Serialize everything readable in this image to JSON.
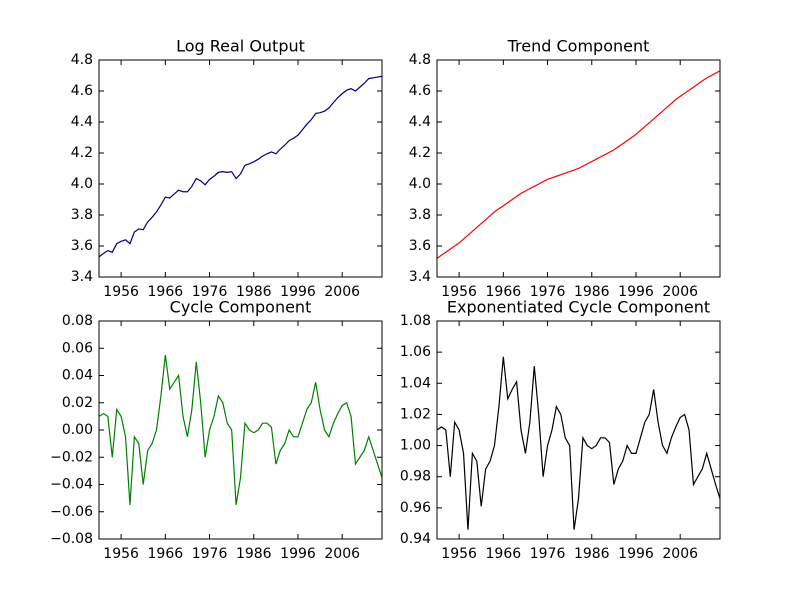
{
  "chart_data": [
    {
      "type": "line",
      "title": "Log Real Output",
      "color": "#000080",
      "x": [
        1951,
        1952,
        1953,
        1954,
        1955,
        1956,
        1957,
        1958,
        1959,
        1960,
        1961,
        1962,
        1963,
        1964,
        1965,
        1966,
        1967,
        1968,
        1969,
        1970,
        1971,
        1972,
        1973,
        1974,
        1975,
        1976,
        1977,
        1978,
        1979,
        1980,
        1981,
        1982,
        1983,
        1984,
        1985,
        1986,
        1987,
        1988,
        1989,
        1990,
        1991,
        1992,
        1993,
        1994,
        1995,
        1996,
        1997,
        1998,
        1999,
        2000,
        2001,
        2002,
        2003,
        2004,
        2005,
        2006,
        2007,
        2008,
        2009,
        2010,
        2011,
        2012,
        2013,
        2014,
        2015
      ],
      "values": [
        3.53,
        3.552,
        3.57,
        3.56,
        3.615,
        3.63,
        3.64,
        3.615,
        3.69,
        3.71,
        3.705,
        3.755,
        3.785,
        3.82,
        3.865,
        3.915,
        3.91,
        3.935,
        3.96,
        3.95,
        3.95,
        3.985,
        4.035,
        4.02,
        3.995,
        4.03,
        4.05,
        4.075,
        4.08,
        4.075,
        4.08,
        4.035,
        4.065,
        4.12,
        4.13,
        4.143,
        4.16,
        4.18,
        4.195,
        4.207,
        4.195,
        4.225,
        4.25,
        4.28,
        4.295,
        4.315,
        4.35,
        4.385,
        4.415,
        4.455,
        4.46,
        4.47,
        4.49,
        4.525,
        4.557,
        4.583,
        4.605,
        4.615,
        4.6,
        4.625,
        4.65,
        4.68,
        4.685,
        4.69,
        4.695
      ],
      "xlim": [
        1951,
        2015
      ],
      "xticks": [
        1956,
        1966,
        1976,
        1986,
        1996,
        2006
      ],
      "ylim": [
        3.4,
        4.8
      ],
      "yticks": [
        {
          "value": 3.4,
          "label": "3.4"
        },
        {
          "value": 3.6,
          "label": "3.6"
        },
        {
          "value": 3.8,
          "label": "3.8"
        },
        {
          "value": 4.0,
          "label": "4.0"
        },
        {
          "value": 4.2,
          "label": "4.2"
        },
        {
          "value": 4.4,
          "label": "4.4"
        },
        {
          "value": 4.6,
          "label": "4.6"
        },
        {
          "value": 4.8,
          "label": "4.8"
        }
      ]
    },
    {
      "type": "line",
      "title": "Trend Component",
      "color": "#ff0000",
      "x": [
        1951,
        1952,
        1953,
        1954,
        1955,
        1956,
        1957,
        1958,
        1959,
        1960,
        1961,
        1962,
        1963,
        1964,
        1965,
        1966,
        1967,
        1968,
        1969,
        1970,
        1971,
        1972,
        1973,
        1974,
        1975,
        1976,
        1977,
        1978,
        1979,
        1980,
        1981,
        1982,
        1983,
        1984,
        1985,
        1986,
        1987,
        1988,
        1989,
        1990,
        1991,
        1992,
        1993,
        1994,
        1995,
        1996,
        1997,
        1998,
        1999,
        2000,
        2001,
        2002,
        2003,
        2004,
        2005,
        2006,
        2007,
        2008,
        2009,
        2010,
        2011,
        2012,
        2013,
        2014,
        2015
      ],
      "values": [
        3.52,
        3.54,
        3.56,
        3.58,
        3.6,
        3.62,
        3.645,
        3.67,
        3.695,
        3.72,
        3.745,
        3.77,
        3.795,
        3.82,
        3.84,
        3.86,
        3.88,
        3.9,
        3.92,
        3.94,
        3.955,
        3.97,
        3.985,
        4.0,
        4.015,
        4.03,
        4.04,
        4.05,
        4.06,
        4.07,
        4.08,
        4.09,
        4.1,
        4.115,
        4.13,
        4.145,
        4.16,
        4.175,
        4.19,
        4.205,
        4.22,
        4.24,
        4.26,
        4.28,
        4.3,
        4.32,
        4.345,
        4.37,
        4.395,
        4.42,
        4.445,
        4.47,
        4.495,
        4.52,
        4.545,
        4.565,
        4.585,
        4.605,
        4.625,
        4.645,
        4.665,
        4.685,
        4.7,
        4.715,
        4.73
      ],
      "xlim": [
        1951,
        2015
      ],
      "xticks": [
        1956,
        1966,
        1976,
        1986,
        1996,
        2006
      ],
      "ylim": [
        3.4,
        4.8
      ],
      "yticks": [
        {
          "value": 3.4,
          "label": "3.4"
        },
        {
          "value": 3.6,
          "label": "3.6"
        },
        {
          "value": 3.8,
          "label": "3.8"
        },
        {
          "value": 4.0,
          "label": "4.0"
        },
        {
          "value": 4.2,
          "label": "4.2"
        },
        {
          "value": 4.4,
          "label": "4.4"
        },
        {
          "value": 4.6,
          "label": "4.6"
        },
        {
          "value": 4.8,
          "label": "4.8"
        }
      ]
    },
    {
      "type": "line",
      "title": "Cycle Component",
      "color": "#008000",
      "x": [
        1951,
        1952,
        1953,
        1954,
        1955,
        1956,
        1957,
        1958,
        1959,
        1960,
        1961,
        1962,
        1963,
        1964,
        1965,
        1966,
        1967,
        1968,
        1969,
        1970,
        1971,
        1972,
        1973,
        1974,
        1975,
        1976,
        1977,
        1978,
        1979,
        1980,
        1981,
        1982,
        1983,
        1984,
        1985,
        1986,
        1987,
        1988,
        1989,
        1990,
        1991,
        1992,
        1993,
        1994,
        1995,
        1996,
        1997,
        1998,
        1999,
        2000,
        2001,
        2002,
        2003,
        2004,
        2005,
        2006,
        2007,
        2008,
        2009,
        2010,
        2011,
        2012,
        2013,
        2014,
        2015
      ],
      "values": [
        0.01,
        0.012,
        0.01,
        -0.02,
        0.015,
        0.01,
        -0.005,
        -0.055,
        -0.005,
        -0.01,
        -0.04,
        -0.015,
        -0.01,
        0.0,
        0.025,
        0.055,
        0.03,
        0.035,
        0.04,
        0.01,
        -0.005,
        0.015,
        0.05,
        0.02,
        -0.02,
        0.0,
        0.01,
        0.025,
        0.02,
        0.005,
        0.0,
        -0.055,
        -0.035,
        0.005,
        0.0,
        -0.002,
        0.0,
        0.005,
        0.005,
        0.002,
        -0.025,
        -0.015,
        -0.01,
        0.0,
        -0.005,
        -0.005,
        0.005,
        0.015,
        0.02,
        0.035,
        0.015,
        0.0,
        -0.005,
        0.005,
        0.012,
        0.018,
        0.02,
        0.01,
        -0.025,
        -0.02,
        -0.015,
        -0.005,
        -0.015,
        -0.025,
        -0.035
      ],
      "xlim": [
        1951,
        2015
      ],
      "xticks": [
        1956,
        1966,
        1976,
        1986,
        1996,
        2006
      ],
      "ylim": [
        -0.08,
        0.08
      ],
      "yticks": [
        {
          "value": -0.08,
          "label": "−0.08"
        },
        {
          "value": -0.06,
          "label": "−0.06"
        },
        {
          "value": -0.04,
          "label": "−0.04"
        },
        {
          "value": -0.02,
          "label": "−0.02"
        },
        {
          "value": 0,
          "label": "0.00"
        },
        {
          "value": 0.02,
          "label": "0.02"
        },
        {
          "value": 0.04,
          "label": "0.04"
        },
        {
          "value": 0.06,
          "label": "0.06"
        },
        {
          "value": 0.08,
          "label": "0.08"
        }
      ]
    },
    {
      "type": "line",
      "title": "Exponentiated Cycle Component",
      "color": "#000000",
      "x": [
        1951,
        1952,
        1953,
        1954,
        1955,
        1956,
        1957,
        1958,
        1959,
        1960,
        1961,
        1962,
        1963,
        1964,
        1965,
        1966,
        1967,
        1968,
        1969,
        1970,
        1971,
        1972,
        1973,
        1974,
        1975,
        1976,
        1977,
        1978,
        1979,
        1980,
        1981,
        1982,
        1983,
        1984,
        1985,
        1986,
        1987,
        1988,
        1989,
        1990,
        1991,
        1992,
        1993,
        1994,
        1995,
        1996,
        1997,
        1998,
        1999,
        2000,
        2001,
        2002,
        2003,
        2004,
        2005,
        2006,
        2007,
        2008,
        2009,
        2010,
        2011,
        2012,
        2013,
        2014,
        2015
      ],
      "values": [
        1.01,
        1.012,
        1.01,
        0.98,
        1.015,
        1.01,
        0.995,
        0.946,
        0.995,
        0.99,
        0.961,
        0.985,
        0.99,
        1.0,
        1.025,
        1.057,
        1.03,
        1.036,
        1.041,
        1.01,
        0.995,
        1.015,
        1.051,
        1.02,
        0.98,
        1.0,
        1.01,
        1.025,
        1.02,
        1.005,
        1.0,
        0.946,
        0.966,
        1.005,
        1.0,
        0.998,
        1.0,
        1.005,
        1.005,
        1.002,
        0.975,
        0.985,
        0.99,
        1.0,
        0.995,
        0.995,
        1.005,
        1.015,
        1.02,
        1.036,
        1.015,
        1.0,
        0.995,
        1.005,
        1.012,
        1.018,
        1.02,
        1.01,
        0.975,
        0.98,
        0.985,
        0.995,
        0.985,
        0.975,
        0.966
      ],
      "xlim": [
        1951,
        2015
      ],
      "xticks": [
        1956,
        1966,
        1976,
        1986,
        1996,
        2006
      ],
      "ylim": [
        0.94,
        1.08
      ],
      "yticks": [
        0.94,
        0.96,
        0.98,
        {
          "value": 1.0,
          "label": "1.00"
        },
        1.02,
        1.04,
        1.06,
        1.08
      ]
    }
  ]
}
